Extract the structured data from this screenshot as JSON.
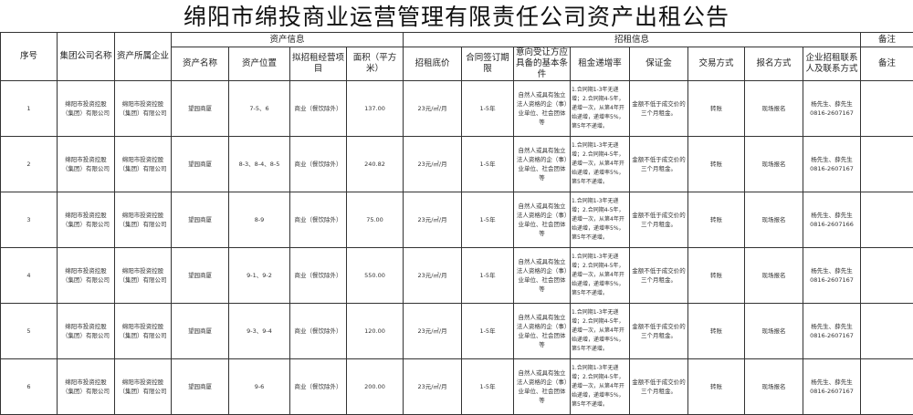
{
  "title": "绵阳市绵投商业运营管理有限责任公司资产出租公告",
  "header": {
    "seq": "序号",
    "group": "集团公司名称",
    "owner": "资产所属企业",
    "asset_info": "资产信息",
    "lease_info": "招租信息",
    "remark_top": "备注",
    "asset_name": "资产名称",
    "location": "资产位置",
    "business": "拟招租经营项目",
    "area": "面积（平方米）",
    "base_price": "招租底价",
    "term": "合同签订期限",
    "conditions": "意向受让方应具备的基本条件",
    "increase": "租金递增率",
    "deposit": "保证金",
    "transaction": "交易方式",
    "registration": "报名方式",
    "contact": "企业招租联系人及联系方式",
    "remark": "备注"
  },
  "rows": [
    {
      "seq": "1",
      "group": "绵阳市投资控股（集团）有限公司",
      "owner": "绵阳市投资控股（集团）有限公司",
      "asset_name": "望园商厦",
      "location": "7-5、6",
      "business": "商业（餐饮除外）",
      "area": "137.00",
      "base_price": "23元/㎡/月",
      "term": "1-5年",
      "conditions": "自然人或具有独立法人资格的企（事）业单位、社会团体等",
      "increase": "1.合同期1-3年无递增；2.合同期4-5年，递增一次，从第4年开始递增，递增率5%，第5年不递增。",
      "deposit": "金额不低于成交价的三个月租金。",
      "transaction": "转账",
      "registration": "现场报名",
      "contact": "杨先生、薛先生 0816-2607167",
      "remark": ""
    },
    {
      "seq": "2",
      "group": "绵阳市投资控股（集团）有限公司",
      "owner": "绵阳市投资控股（集团）有限公司",
      "asset_name": "望园商厦",
      "location": "8-3、8-4、8-5",
      "business": "商业（餐饮除外）",
      "area": "240.82",
      "base_price": "23元/㎡/月",
      "term": "1-5年",
      "conditions": "自然人或具有独立法人资格的企（事）业单位、社会团体等",
      "increase": "1.合同期1-3年无递增；2.合同期4-5年，递增一次，从第4年开始递增，递增率5%，第5年不递增。",
      "deposit": "金额不低于成交价的三个月租金。",
      "transaction": "转账",
      "registration": "现场报名",
      "contact": "杨先生、薛先生 0816-2607167",
      "remark": ""
    },
    {
      "seq": "3",
      "group": "绵阳市投资控股（集团）有限公司",
      "owner": "绵阳市投资控股（集团）有限公司",
      "asset_name": "望园商厦",
      "location": "8-9",
      "business": "商业（餐饮除外）",
      "area": "75.00",
      "base_price": "23元/㎡/月",
      "term": "1-5年",
      "conditions": "自然人或具有独立法人资格的企（事）业单位、社会团体等",
      "increase": "1.合同期1-3年无递增；2.合同期4-5年，递增一次，从第4年开始递增，递增率5%，第5年不递增。",
      "deposit": "金额不低于成交价的三个月租金。",
      "transaction": "转账",
      "registration": "现场报名",
      "contact": "杨先生、薛先生 0816-2607166",
      "remark": ""
    },
    {
      "seq": "4",
      "group": "绵阳市投资控股（集团）有限公司",
      "owner": "绵阳市投资控股（集团）有限公司",
      "asset_name": "望园商厦",
      "location": "9-1、9-2",
      "business": "商业（餐饮除外）",
      "area": "550.00",
      "base_price": "23元/㎡/月",
      "term": "1-5年",
      "conditions": "自然人或具有独立法人资格的企（事）业单位、社会团体等",
      "increase": "1.合同期1-3年无递增；2.合同期4-5年，递增一次，从第4年开始递增，递增率5%，第5年不递增。",
      "deposit": "金额不低于成交价的三个月租金。",
      "transaction": "转账",
      "registration": "现场报名",
      "contact": "杨先生、薛先生 0816-2607167",
      "remark": ""
    },
    {
      "seq": "5",
      "group": "绵阳市投资控股（集团）有限公司",
      "owner": "绵阳市投资控股（集团）有限公司",
      "asset_name": "望园商厦",
      "location": "9-3、9-4",
      "business": "商业（餐饮除外）",
      "area": "120.00",
      "base_price": "23元/㎡/月",
      "term": "1-5年",
      "conditions": "自然人或具有独立法人资格的企（事）业单位、社会团体等",
      "increase": "1.合同期1-3年无递增；2.合同期4-5年，递增一次，从第4年开始递增，递增率5%，第5年不递增。",
      "deposit": "金额不低于成交价的三个月租金。",
      "transaction": "转账",
      "registration": "现场报名",
      "contact": "杨先生、薛先生 0816-2607167",
      "remark": ""
    },
    {
      "seq": "6",
      "group": "绵阳市投资控股（集团）有限公司",
      "owner": "绵阳市投资控股（集团）有限公司",
      "asset_name": "望园商厦",
      "location": "9-6",
      "business": "商业（餐饮除外）",
      "area": "200.00",
      "base_price": "23元/㎡/月",
      "term": "1-5年",
      "conditions": "自然人或具有独立法人资格的企（事）业单位、社会团体等",
      "increase": "1.合同期1-3年无递增；2.合同期4-5年，递增一次，从第4年开始递增，递增率5%，第5年不递增。",
      "deposit": "金额不低于成交价的三个月租金。",
      "transaction": "转账",
      "registration": "现场报名",
      "contact": "杨先生、薛先生 0816-2607167",
      "remark": ""
    }
  ]
}
